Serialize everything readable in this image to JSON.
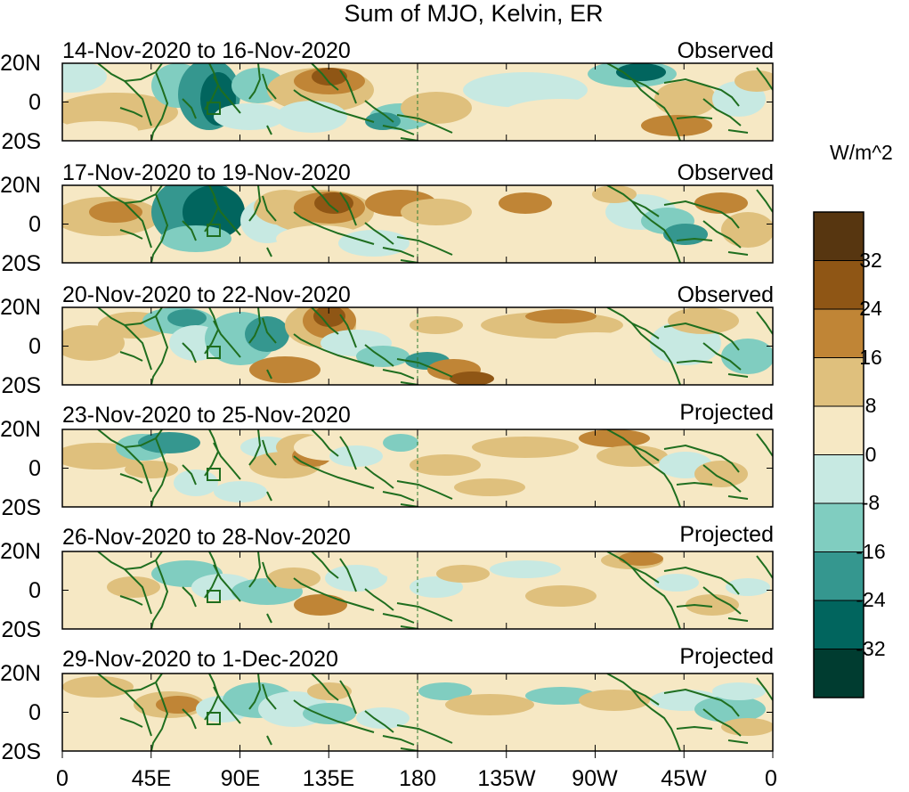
{
  "title": "Sum of MJO, Kelvin, ER",
  "units": "W/m^2",
  "lat_labels": [
    "20N",
    "0",
    "20S"
  ],
  "lon_labels": [
    "0",
    "45E",
    "90E",
    "135E",
    "180",
    "135W",
    "90W",
    "45W",
    "0"
  ],
  "colorbar": {
    "labels": [
      "32",
      "24",
      "16",
      "8",
      "0",
      "-8",
      "-16",
      "-24",
      "-32"
    ],
    "colors": [
      "#573610",
      "#8f5615",
      "#c08536",
      "#dfc07d",
      "#f6e8c4",
      "#c7e9e2",
      "#80cdc0",
      "#35978f",
      "#01655e",
      "#003c30"
    ]
  },
  "panels": [
    {
      "dates": "14-Nov-2020 to 16-Nov-2020",
      "status": "Observed"
    },
    {
      "dates": "17-Nov-2020 to 19-Nov-2020",
      "status": "Observed"
    },
    {
      "dates": "20-Nov-2020 to 22-Nov-2020",
      "status": "Observed"
    },
    {
      "dates": "23-Nov-2020 to 25-Nov-2020",
      "status": "Projected"
    },
    {
      "dates": "26-Nov-2020 to 28-Nov-2020",
      "status": "Projected"
    },
    {
      "dates": "29-Nov-2020 to 1-Dec-2020",
      "status": "Projected"
    }
  ]
}
